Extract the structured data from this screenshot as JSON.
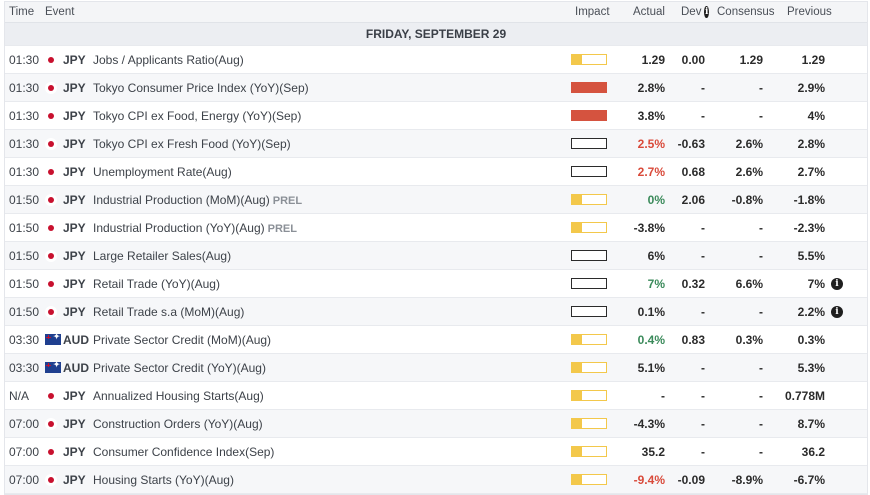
{
  "header": {
    "time": "Time",
    "event": "Event",
    "impact": "Impact",
    "actual": "Actual",
    "dev": "Dev",
    "consensus": "Consensus",
    "previous": "Previous"
  },
  "day_label": "FRIDAY, SEPTEMBER 29",
  "colors": {
    "impact_low": "#f3c84b",
    "impact_medium": "#e8891c",
    "impact_high": "#d5533f",
    "positive": "#3a8a5a",
    "negative": "#d94a3a"
  },
  "rows": [
    {
      "time": "01:30",
      "currency": "JPY",
      "flag": "jp",
      "event": "Jobs / Applicants Ratio(Aug)",
      "tag": "",
      "impact": "low",
      "actual": "1.29",
      "actual_color": "",
      "dev": "0.00",
      "consensus": "1.29",
      "previous": "1.29",
      "info": false
    },
    {
      "time": "01:30",
      "currency": "JPY",
      "flag": "jp",
      "event": "Tokyo Consumer Price Index (YoY)(Sep)",
      "tag": "",
      "impact": "high",
      "actual": "2.8%",
      "actual_color": "",
      "dev": "-",
      "consensus": "-",
      "previous": "2.9%",
      "info": false
    },
    {
      "time": "01:30",
      "currency": "JPY",
      "flag": "jp",
      "event": "Tokyo CPI ex Food, Energy (YoY)(Sep)",
      "tag": "",
      "impact": "high",
      "actual": "3.8%",
      "actual_color": "",
      "dev": "-",
      "consensus": "-",
      "previous": "4%",
      "info": false
    },
    {
      "time": "01:30",
      "currency": "JPY",
      "flag": "jp",
      "event": "Tokyo CPI ex Fresh Food (YoY)(Sep)",
      "tag": "",
      "impact": "medium",
      "actual": "2.5%",
      "actual_color": "neg",
      "dev": "-0.63",
      "consensus": "2.6%",
      "previous": "2.8%",
      "info": false
    },
    {
      "time": "01:30",
      "currency": "JPY",
      "flag": "jp",
      "event": "Unemployment Rate(Aug)",
      "tag": "",
      "impact": "medium",
      "actual": "2.7%",
      "actual_color": "neg",
      "dev": "0.68",
      "consensus": "2.6%",
      "previous": "2.7%",
      "info": false
    },
    {
      "time": "01:50",
      "currency": "JPY",
      "flag": "jp",
      "event": "Industrial Production (MoM)(Aug)",
      "tag": "PREL",
      "impact": "low",
      "actual": "0%",
      "actual_color": "pos",
      "dev": "2.06",
      "consensus": "-0.8%",
      "previous": "-1.8%",
      "info": false
    },
    {
      "time": "01:50",
      "currency": "JPY",
      "flag": "jp",
      "event": "Industrial Production (YoY)(Aug)",
      "tag": "PREL",
      "impact": "low",
      "actual": "-3.8%",
      "actual_color": "",
      "dev": "-",
      "consensus": "-",
      "previous": "-2.3%",
      "info": false
    },
    {
      "time": "01:50",
      "currency": "JPY",
      "flag": "jp",
      "event": "Large Retailer Sales(Aug)",
      "tag": "",
      "impact": "medium",
      "actual": "6%",
      "actual_color": "",
      "dev": "-",
      "consensus": "-",
      "previous": "5.5%",
      "info": false
    },
    {
      "time": "01:50",
      "currency": "JPY",
      "flag": "jp",
      "event": "Retail Trade (YoY)(Aug)",
      "tag": "",
      "impact": "medium",
      "actual": "7%",
      "actual_color": "pos",
      "dev": "0.32",
      "consensus": "6.6%",
      "previous": "7%",
      "info": true
    },
    {
      "time": "01:50",
      "currency": "JPY",
      "flag": "jp",
      "event": "Retail Trade s.a (MoM)(Aug)",
      "tag": "",
      "impact": "medium",
      "actual": "0.1%",
      "actual_color": "",
      "dev": "-",
      "consensus": "-",
      "previous": "2.2%",
      "info": true
    },
    {
      "time": "03:30",
      "currency": "AUD",
      "flag": "au",
      "event": "Private Sector Credit (MoM)(Aug)",
      "tag": "",
      "impact": "low",
      "actual": "0.4%",
      "actual_color": "pos",
      "dev": "0.83",
      "consensus": "0.3%",
      "previous": "0.3%",
      "info": false
    },
    {
      "time": "03:30",
      "currency": "AUD",
      "flag": "au",
      "event": "Private Sector Credit (YoY)(Aug)",
      "tag": "",
      "impact": "low",
      "actual": "5.1%",
      "actual_color": "",
      "dev": "-",
      "consensus": "-",
      "previous": "5.3%",
      "info": false
    },
    {
      "time": "N/A",
      "currency": "JPY",
      "flag": "jp",
      "event": "Annualized Housing Starts(Aug)",
      "tag": "",
      "impact": "low",
      "actual": "-",
      "actual_color": "",
      "dev": "-",
      "consensus": "-",
      "previous": "0.778M",
      "info": false
    },
    {
      "time": "07:00",
      "currency": "JPY",
      "flag": "jp",
      "event": "Construction Orders (YoY)(Aug)",
      "tag": "",
      "impact": "low",
      "actual": "-4.3%",
      "actual_color": "",
      "dev": "-",
      "consensus": "-",
      "previous": "8.7%",
      "info": false
    },
    {
      "time": "07:00",
      "currency": "JPY",
      "flag": "jp",
      "event": "Consumer Confidence Index(Sep)",
      "tag": "",
      "impact": "low",
      "actual": "35.2",
      "actual_color": "",
      "dev": "-",
      "consensus": "-",
      "previous": "36.2",
      "info": false
    },
    {
      "time": "07:00",
      "currency": "JPY",
      "flag": "jp",
      "event": "Housing Starts (YoY)(Aug)",
      "tag": "",
      "impact": "low",
      "actual": "-9.4%",
      "actual_color": "neg",
      "dev": "-0.09",
      "consensus": "-8.9%",
      "previous": "-6.7%",
      "info": false
    }
  ]
}
